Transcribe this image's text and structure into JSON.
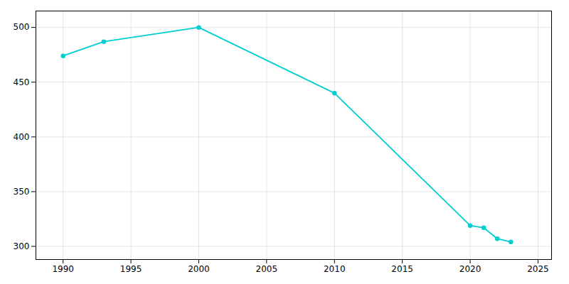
{
  "chart_data": {
    "type": "line",
    "x": [
      1990,
      1993,
      2000,
      2010,
      2020,
      2021,
      2022,
      2023
    ],
    "values": [
      474,
      487,
      500,
      440,
      319,
      317,
      307,
      304
    ],
    "color": "#00CED1",
    "marker": "circle",
    "xlim": [
      1988,
      2026
    ],
    "ylim": [
      288,
      515
    ],
    "xticks": [
      1990,
      1995,
      2000,
      2005,
      2010,
      2015,
      2020,
      2025
    ],
    "yticks": [
      300,
      350,
      400,
      450,
      500
    ],
    "grid": true
  }
}
